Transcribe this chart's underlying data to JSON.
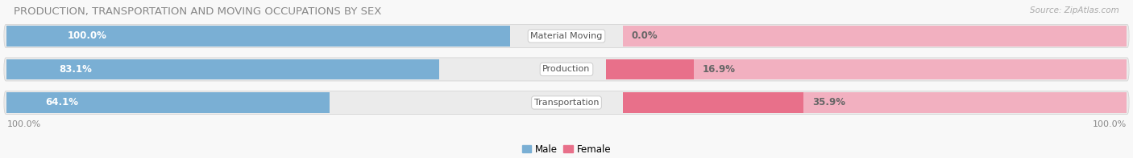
{
  "title": "PRODUCTION, TRANSPORTATION AND MOVING OCCUPATIONS BY SEX",
  "source": "Source: ZipAtlas.com",
  "categories": [
    "Material Moving",
    "Production",
    "Transportation"
  ],
  "male_values": [
    100.0,
    83.1,
    64.1
  ],
  "female_values": [
    0.0,
    16.9,
    35.9
  ],
  "male_color": "#7aafd4",
  "female_color": "#e8708a",
  "male_light_color": "#b8d0e8",
  "female_light_color": "#f2b0c0",
  "row_bg_color": "#ebebeb",
  "row_gap_color": "#f8f8f8",
  "title_color": "#888888",
  "source_color": "#aaaaaa",
  "label_white": "#ffffff",
  "label_dark": "#666666",
  "cat_label_color": "#555555",
  "title_fontsize": 9.5,
  "source_fontsize": 7.5,
  "bar_label_fontsize": 8.5,
  "category_label_fontsize": 8,
  "legend_fontsize": 8.5,
  "axis_label_fontsize": 8,
  "left_label": "100.0%",
  "right_label": "100.0%",
  "figwidth": 14.06,
  "figheight": 1.97,
  "dpi": 100
}
